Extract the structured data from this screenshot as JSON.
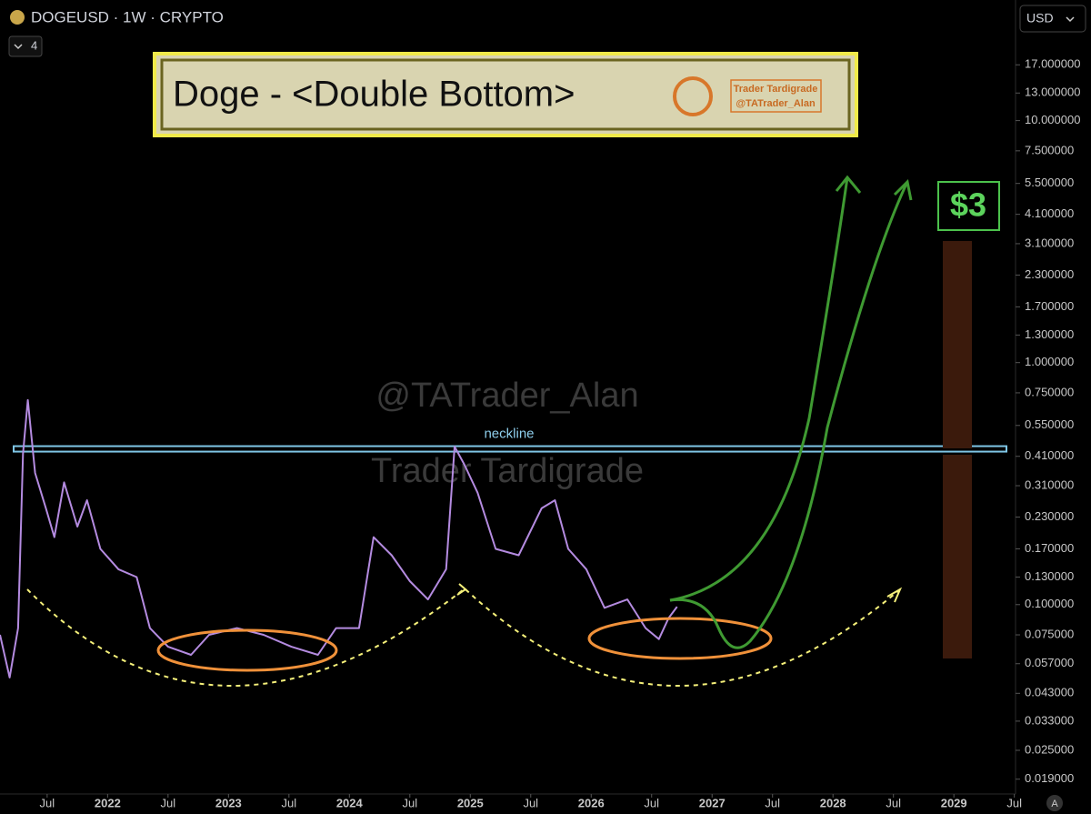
{
  "header": {
    "symbol": "DOGEUSD · 1W · CRYPTO",
    "indicator_count": 4,
    "currency": "USD"
  },
  "chart_data": {
    "type": "line",
    "title": "Doge - <Double Bottom>",
    "badge": [
      "Trader Tardigrade",
      "@TATrader_Alan"
    ],
    "watermark": [
      "@TATrader_Alan",
      "Trader Tardigrade"
    ],
    "neckline": {
      "label": "neckline",
      "value": 0.44
    },
    "target": "$3",
    "corner_label": "A",
    "log_scale": true,
    "color": "#b48be0",
    "x": [
      2021.11,
      2021.19,
      2021.26,
      2021.3,
      2021.34,
      2021.4,
      2021.49,
      2021.56,
      2021.64,
      2021.75,
      2021.83,
      2021.94,
      2022.09,
      2022.24,
      2022.35,
      2022.5,
      2022.69,
      2022.84,
      2023.07,
      2023.29,
      2023.52,
      2023.74,
      2023.89,
      2024.08,
      2024.2,
      2024.35,
      2024.5,
      2024.65,
      2024.8,
      2024.87,
      2024.95,
      2025.06,
      2025.21,
      2025.4,
      2025.59,
      2025.7,
      2025.81,
      2025.96,
      2026.11,
      2026.3,
      2026.45,
      2026.56,
      2026.64,
      2026.71
    ],
    "values": [
      0.075,
      0.05,
      0.08,
      0.42,
      0.7,
      0.35,
      0.25,
      0.19,
      0.32,
      0.21,
      0.27,
      0.17,
      0.14,
      0.13,
      0.08,
      0.067,
      0.062,
      0.075,
      0.08,
      0.075,
      0.067,
      0.062,
      0.08,
      0.08,
      0.19,
      0.16,
      0.125,
      0.105,
      0.14,
      0.45,
      0.38,
      0.29,
      0.17,
      0.16,
      0.25,
      0.27,
      0.17,
      0.14,
      0.097,
      0.105,
      0.08,
      0.072,
      0.088,
      0.098
    ],
    "xlim": [
      2021.11,
      2029.51
    ],
    "ylim": [
      0.0165,
      31.5
    ],
    "xticks": [
      {
        "value": 2021.5,
        "label": "Jul"
      },
      2022,
      {
        "value": 2022.5,
        "label": "Jul"
      },
      2023,
      {
        "value": 2023.5,
        "label": "Jul"
      },
      2024,
      {
        "value": 2024.5,
        "label": "Jul"
      },
      2025,
      {
        "value": 2025.5,
        "label": "Jul"
      },
      2026,
      {
        "value": 2026.5,
        "label": "Jul"
      },
      2027,
      {
        "value": 2027.5,
        "label": "Jul"
      },
      2028,
      {
        "value": 2028.5,
        "label": "Jul"
      },
      2029,
      {
        "value": 2029.5,
        "label": "Jul"
      }
    ],
    "yticks": [
      {
        "value": 17,
        "label": "17.000000"
      },
      {
        "value": 13,
        "label": "13.000000"
      },
      {
        "value": 10,
        "label": "10.000000"
      },
      {
        "value": 7.5,
        "label": "7.500000"
      },
      {
        "value": 5.5,
        "label": "5.500000"
      },
      {
        "value": 4.1,
        "label": "4.100000"
      },
      {
        "value": 3.1,
        "label": "3.100000"
      },
      {
        "value": 2.3,
        "label": "2.300000"
      },
      {
        "value": 1.7,
        "label": "1.700000"
      },
      {
        "value": 1.3,
        "label": "1.300000"
      },
      {
        "value": 1,
        "label": "1.000000"
      },
      {
        "value": 0.75,
        "label": "0.750000"
      },
      {
        "value": 0.55,
        "label": "0.550000"
      },
      {
        "value": 0.41,
        "label": "0.410000"
      },
      {
        "value": 0.31,
        "label": "0.310000"
      },
      {
        "value": 0.23,
        "label": "0.230000"
      },
      {
        "value": 0.17,
        "label": "0.170000"
      },
      {
        "value": 0.13,
        "label": "0.130000"
      },
      {
        "value": 0.1,
        "label": "0.100000"
      },
      {
        "value": 0.075,
        "label": "0.075000"
      },
      {
        "value": 0.057,
        "label": "0.057000"
      },
      {
        "value": 0.043,
        "label": "0.043000"
      },
      {
        "value": 0.033,
        "label": "0.033000"
      },
      {
        "value": 0.025,
        "label": "0.025000"
      },
      {
        "value": 0.019,
        "label": "0.019000"
      }
    ]
  }
}
